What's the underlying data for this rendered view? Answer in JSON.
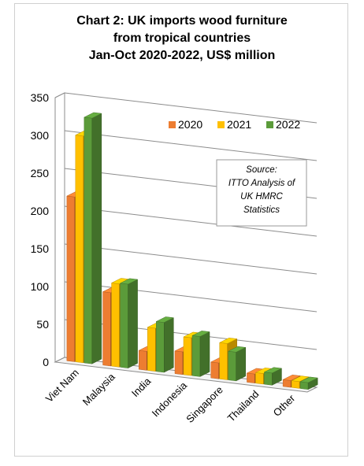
{
  "chart_data": {
    "type": "bar",
    "title_lines": [
      "Chart 2: UK imports wood furniture",
      "from tropical countries",
      "Jan-Oct 2020-2022, US$ million"
    ],
    "categories": [
      "Viet Nam",
      "Malaysia",
      "India",
      "Indonesia",
      "Singapore",
      "Thailand",
      "Other"
    ],
    "series": [
      {
        "name": "2020",
        "color": "#ED7D31",
        "values": [
          218,
          97,
          25,
          30,
          21,
          12,
          9
        ]
      },
      {
        "name": "2021",
        "color": "#FFC000",
        "values": [
          300,
          110,
          57,
          50,
          48,
          14,
          9
        ]
      },
      {
        "name": "2022",
        "color": "#5B9B3A",
        "values": [
          325,
          111,
          66,
          53,
          38,
          16,
          9
        ]
      }
    ],
    "ylim": [
      0,
      350
    ],
    "yticks": [
      0,
      50,
      100,
      150,
      200,
      250,
      300,
      350
    ],
    "grid": true,
    "legend_position": "top-right",
    "source_lines": [
      "Source:",
      "ITTO Analysis of",
      "UK HMRC",
      "Statistics"
    ]
  }
}
